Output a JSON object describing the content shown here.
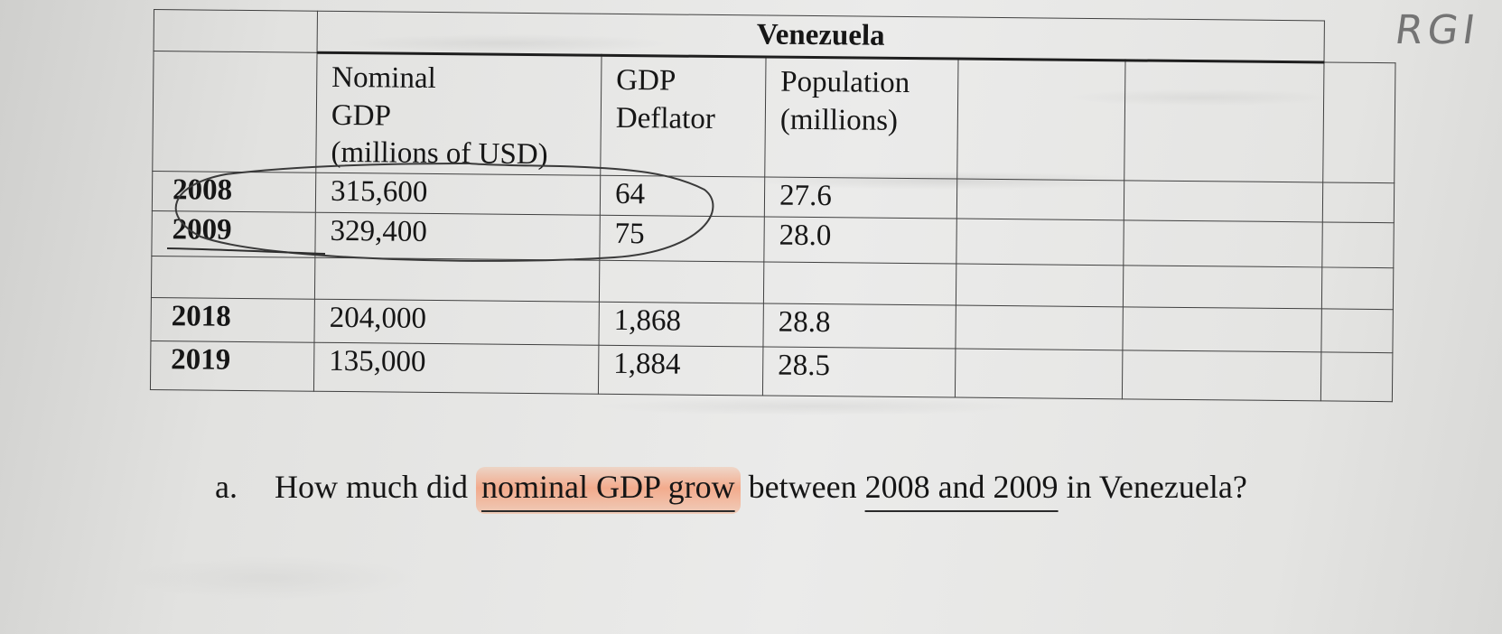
{
  "table": {
    "country": "Venezuela",
    "headers": [
      "Nominal GDP (millions of USD)",
      "GDP Deflator",
      "Population (millions)"
    ],
    "header_lines": [
      [
        "Nominal",
        "GDP",
        "(millions of USD)"
      ],
      [
        "GDP",
        "Deflator"
      ],
      [
        "Population",
        "(millions)"
      ]
    ],
    "rows": [
      {
        "year": "2008",
        "nominal_gdp": "315,600",
        "deflator": "64",
        "population": "27.6"
      },
      {
        "year": "2009",
        "nominal_gdp": "329,400",
        "deflator": "75",
        "population": "28.0"
      },
      {
        "year": "",
        "nominal_gdp": "",
        "deflator": "",
        "population": ""
      },
      {
        "year": "2018",
        "nominal_gdp": "204,000",
        "deflator": "1,868",
        "population": "28.8"
      },
      {
        "year": "2019",
        "nominal_gdp": "135,000",
        "deflator": "1,884",
        "population": "28.5"
      }
    ]
  },
  "handwriting": {
    "corner_text": "RGI"
  },
  "question": {
    "label": "a.",
    "prefix": "How much did ",
    "highlighted": "nominal GDP grow",
    "middle": " between ",
    "underlined": "2008 and 2009",
    "suffix": " in Venezuela?"
  },
  "colors": {
    "highlighter": "#f6966e",
    "pen": "#3a3a3a",
    "paper": "#e6e6e4"
  }
}
